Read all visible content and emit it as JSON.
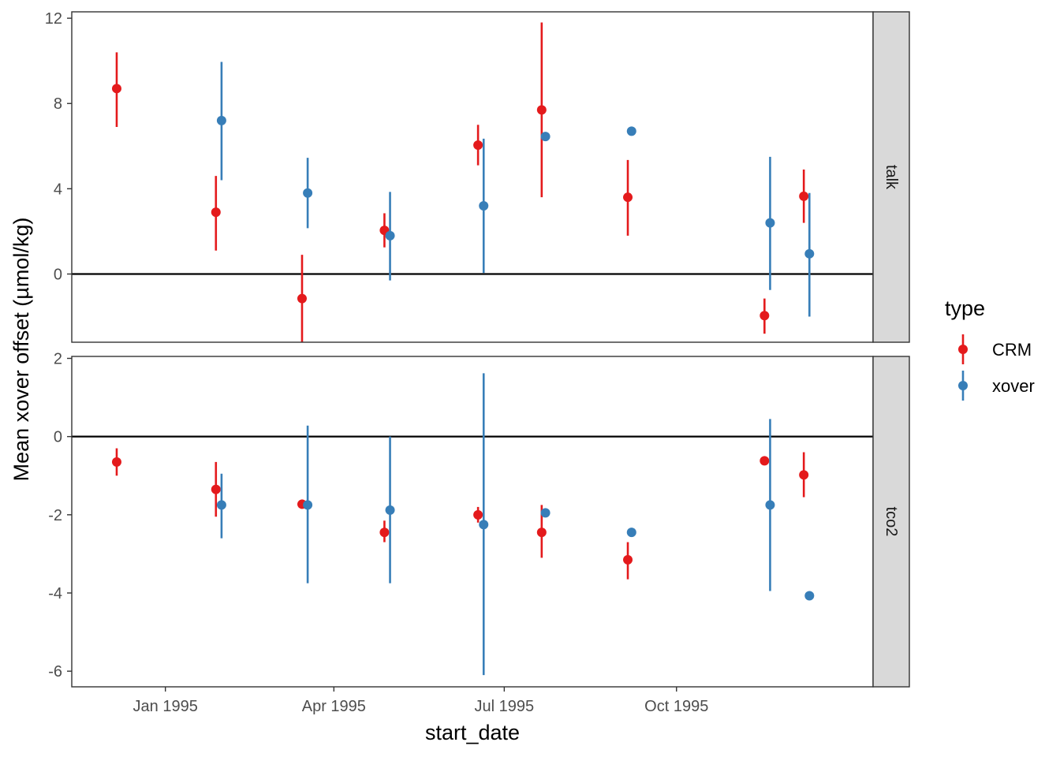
{
  "chart_data": {
    "type": "scatter",
    "xlabel": "start_date",
    "ylabel": "Mean xover offset (µmol/kg)",
    "x_axis": {
      "type": "date",
      "range": [
        "1994-11-12",
        "1996-01-14"
      ],
      "ticks": [
        "1995-01-01",
        "1995-04-01",
        "1995-07-01",
        "1995-10-01"
      ],
      "tick_labels": [
        "Jan 1995",
        "Apr 1995",
        "Jul 1995",
        "Oct 1995"
      ]
    },
    "legend": {
      "title": "type",
      "position": "right",
      "entries": [
        {
          "label": "CRM",
          "color": "#e41a1c"
        },
        {
          "label": "xover",
          "color": "#377eb8"
        }
      ]
    },
    "reference_line_y": 0,
    "facets": [
      {
        "label": "talk",
        "ylim": [
          -3.2,
          12.3
        ],
        "y_ticks": [
          0,
          4,
          8,
          12
        ],
        "y_tick_labels": [
          "0",
          "4",
          "8",
          "12"
        ],
        "series": [
          {
            "name": "CRM",
            "color": "#e41a1c",
            "points": [
              {
                "x": "1994-12-06",
                "y": 8.7,
                "lo": 6.9,
                "hi": 10.4
              },
              {
                "x": "1995-01-28",
                "y": 2.9,
                "lo": 1.1,
                "hi": 4.6
              },
              {
                "x": "1995-03-15",
                "y": -1.15,
                "lo": -3.2,
                "hi": 0.9
              },
              {
                "x": "1995-04-28",
                "y": 2.05,
                "lo": 1.25,
                "hi": 2.85
              },
              {
                "x": "1995-06-17",
                "y": 6.05,
                "lo": 5.1,
                "hi": 7.0
              },
              {
                "x": "1995-07-21",
                "y": 7.7,
                "lo": 3.6,
                "hi": 11.8
              },
              {
                "x": "1995-09-05",
                "y": 3.6,
                "lo": 1.8,
                "hi": 5.35
              },
              {
                "x": "1995-11-17",
                "y": -1.95,
                "lo": -2.8,
                "hi": -1.15
              },
              {
                "x": "1995-12-08",
                "y": 3.65,
                "lo": 2.4,
                "hi": 4.9
              }
            ]
          },
          {
            "name": "xover",
            "color": "#377eb8",
            "points": [
              {
                "x": "1995-01-31",
                "y": 7.2,
                "lo": 4.4,
                "hi": 9.95
              },
              {
                "x": "1995-03-18",
                "y": 3.8,
                "lo": 2.15,
                "hi": 5.45
              },
              {
                "x": "1995-05-01",
                "y": 1.8,
                "lo": -0.3,
                "hi": 3.85
              },
              {
                "x": "1995-06-20",
                "y": 3.2,
                "lo": 0.05,
                "hi": 6.35
              },
              {
                "x": "1995-07-23",
                "y": 6.45,
                "lo": null,
                "hi": null
              },
              {
                "x": "1995-09-07",
                "y": 6.7,
                "lo": null,
                "hi": null
              },
              {
                "x": "1995-11-20",
                "y": 2.4,
                "lo": -0.75,
                "hi": 5.5
              },
              {
                "x": "1995-12-11",
                "y": 0.95,
                "lo": -2.0,
                "hi": 3.8
              }
            ]
          }
        ]
      },
      {
        "label": "tco2",
        "ylim": [
          -6.4,
          2.05
        ],
        "y_ticks": [
          -6,
          -4,
          -2,
          0,
          2
        ],
        "y_tick_labels": [
          "-6",
          "-4",
          "-2",
          "0",
          "2"
        ],
        "series": [
          {
            "name": "CRM",
            "color": "#e41a1c",
            "points": [
              {
                "x": "1994-12-06",
                "y": -0.65,
                "lo": -1.0,
                "hi": -0.3
              },
              {
                "x": "1995-01-28",
                "y": -1.35,
                "lo": -2.05,
                "hi": -0.65
              },
              {
                "x": "1995-03-15",
                "y": -1.73,
                "lo": null,
                "hi": null
              },
              {
                "x": "1995-04-28",
                "y": -2.45,
                "lo": -2.7,
                "hi": -2.15
              },
              {
                "x": "1995-06-17",
                "y": -2.0,
                "lo": -2.2,
                "hi": -1.8
              },
              {
                "x": "1995-07-21",
                "y": -2.45,
                "lo": -3.1,
                "hi": -1.75
              },
              {
                "x": "1995-09-05",
                "y": -3.15,
                "lo": -3.65,
                "hi": -2.7
              },
              {
                "x": "1995-11-17",
                "y": -0.62,
                "lo": null,
                "hi": null
              },
              {
                "x": "1995-12-08",
                "y": -0.98,
                "lo": -1.55,
                "hi": -0.4
              }
            ]
          },
          {
            "name": "xover",
            "color": "#377eb8",
            "points": [
              {
                "x": "1995-01-31",
                "y": -1.75,
                "lo": -2.6,
                "hi": -0.95
              },
              {
                "x": "1995-03-18",
                "y": -1.75,
                "lo": -3.75,
                "hi": 0.28
              },
              {
                "x": "1995-05-01",
                "y": -1.88,
                "lo": -3.75,
                "hi": 0.0
              },
              {
                "x": "1995-06-20",
                "y": -2.25,
                "lo": -6.1,
                "hi": 1.62
              },
              {
                "x": "1995-07-23",
                "y": -1.95,
                "lo": null,
                "hi": null
              },
              {
                "x": "1995-09-07",
                "y": -2.45,
                "lo": null,
                "hi": null
              },
              {
                "x": "1995-11-20",
                "y": -1.75,
                "lo": -3.95,
                "hi": 0.45
              },
              {
                "x": "1995-12-11",
                "y": -4.07,
                "lo": null,
                "hi": null
              }
            ]
          }
        ]
      }
    ]
  }
}
